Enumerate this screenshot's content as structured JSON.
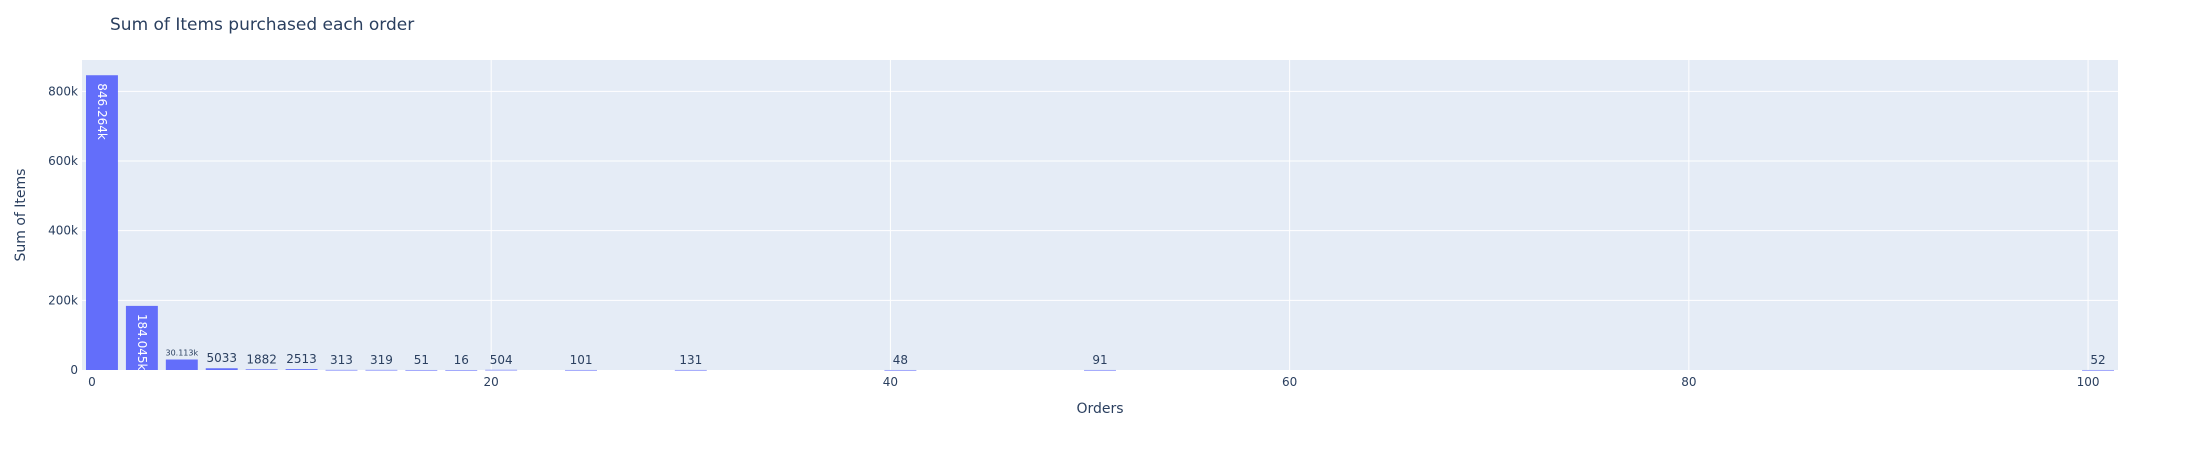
{
  "chart_data": {
    "type": "bar",
    "title": "Sum of Items purchased each order",
    "xlabel": "Orders",
    "ylabel": "Sum of Items",
    "xlim": [
      -0.5,
      101.5
    ],
    "ylim": [
      0,
      890000
    ],
    "x_ticks": [
      0,
      20,
      40,
      60,
      80,
      100
    ],
    "y_ticks": [
      0,
      200000,
      400000,
      600000,
      800000
    ],
    "y_tick_labels": [
      "0",
      "200k",
      "400k",
      "600k",
      "800k"
    ],
    "grid": true,
    "bar_color": "#636efa",
    "plot_bg": "#e5ecf6",
    "points": [
      {
        "x": 0.5,
        "value": 846264,
        "label": "846.264k"
      },
      {
        "x": 2.5,
        "value": 184045,
        "label": "184.045k"
      },
      {
        "x": 4.5,
        "value": 30113,
        "label": "30.113k"
      },
      {
        "x": 6.5,
        "value": 5033,
        "label": "5033"
      },
      {
        "x": 8.5,
        "value": 1882,
        "label": "1882"
      },
      {
        "x": 10.5,
        "value": 2513,
        "label": "2513"
      },
      {
        "x": 12.5,
        "value": 313,
        "label": "313"
      },
      {
        "x": 14.5,
        "value": 319,
        "label": "319"
      },
      {
        "x": 16.5,
        "value": 51,
        "label": "51"
      },
      {
        "x": 18.5,
        "value": 16,
        "label": "16"
      },
      {
        "x": 20.5,
        "value": 504,
        "label": "504"
      },
      {
        "x": 24.5,
        "value": 101,
        "label": "101"
      },
      {
        "x": 30,
        "value": 131,
        "label": "131"
      },
      {
        "x": 40.5,
        "value": 48,
        "label": "48"
      },
      {
        "x": 50.5,
        "value": 91,
        "label": "91"
      },
      {
        "x": 100.5,
        "value": 52,
        "label": "52"
      }
    ]
  }
}
